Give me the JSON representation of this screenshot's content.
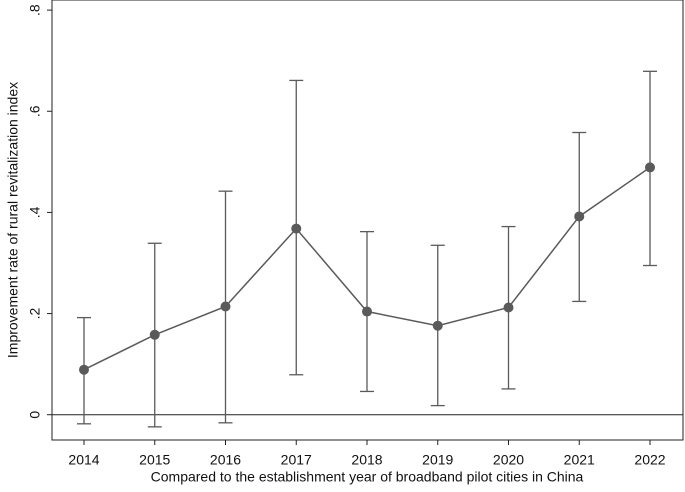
{
  "chart_data": {
    "type": "errorbar_line",
    "y_label": "Improvement rate of rural revitalization index",
    "x_label": "Compared to the establishment year of broadband pilot cities in China",
    "categories": [
      "2014",
      "2015",
      "2016",
      "2017",
      "2018",
      "2019",
      "2020",
      "2021",
      "2022"
    ],
    "values": [
      0.089,
      0.158,
      0.214,
      0.368,
      0.204,
      0.176,
      0.212,
      0.392,
      0.489
    ],
    "lower": [
      -0.018,
      -0.024,
      -0.016,
      0.079,
      0.046,
      0.018,
      0.051,
      0.224,
      0.295
    ],
    "upper": [
      0.192,
      0.339,
      0.442,
      0.661,
      0.362,
      0.335,
      0.372,
      0.558,
      0.679
    ],
    "color": "#5a5a5a",
    "reference_line": 0,
    "ylim": [
      -0.05,
      0.82
    ],
    "yticks": [
      0,
      {
        "value": 0.2,
        "label": ".2"
      },
      {
        "value": 0.4,
        "label": ".4"
      },
      {
        "value": 0.6,
        "label": ".6"
      },
      {
        "value": 0.8,
        "label": ".8"
      }
    ]
  }
}
